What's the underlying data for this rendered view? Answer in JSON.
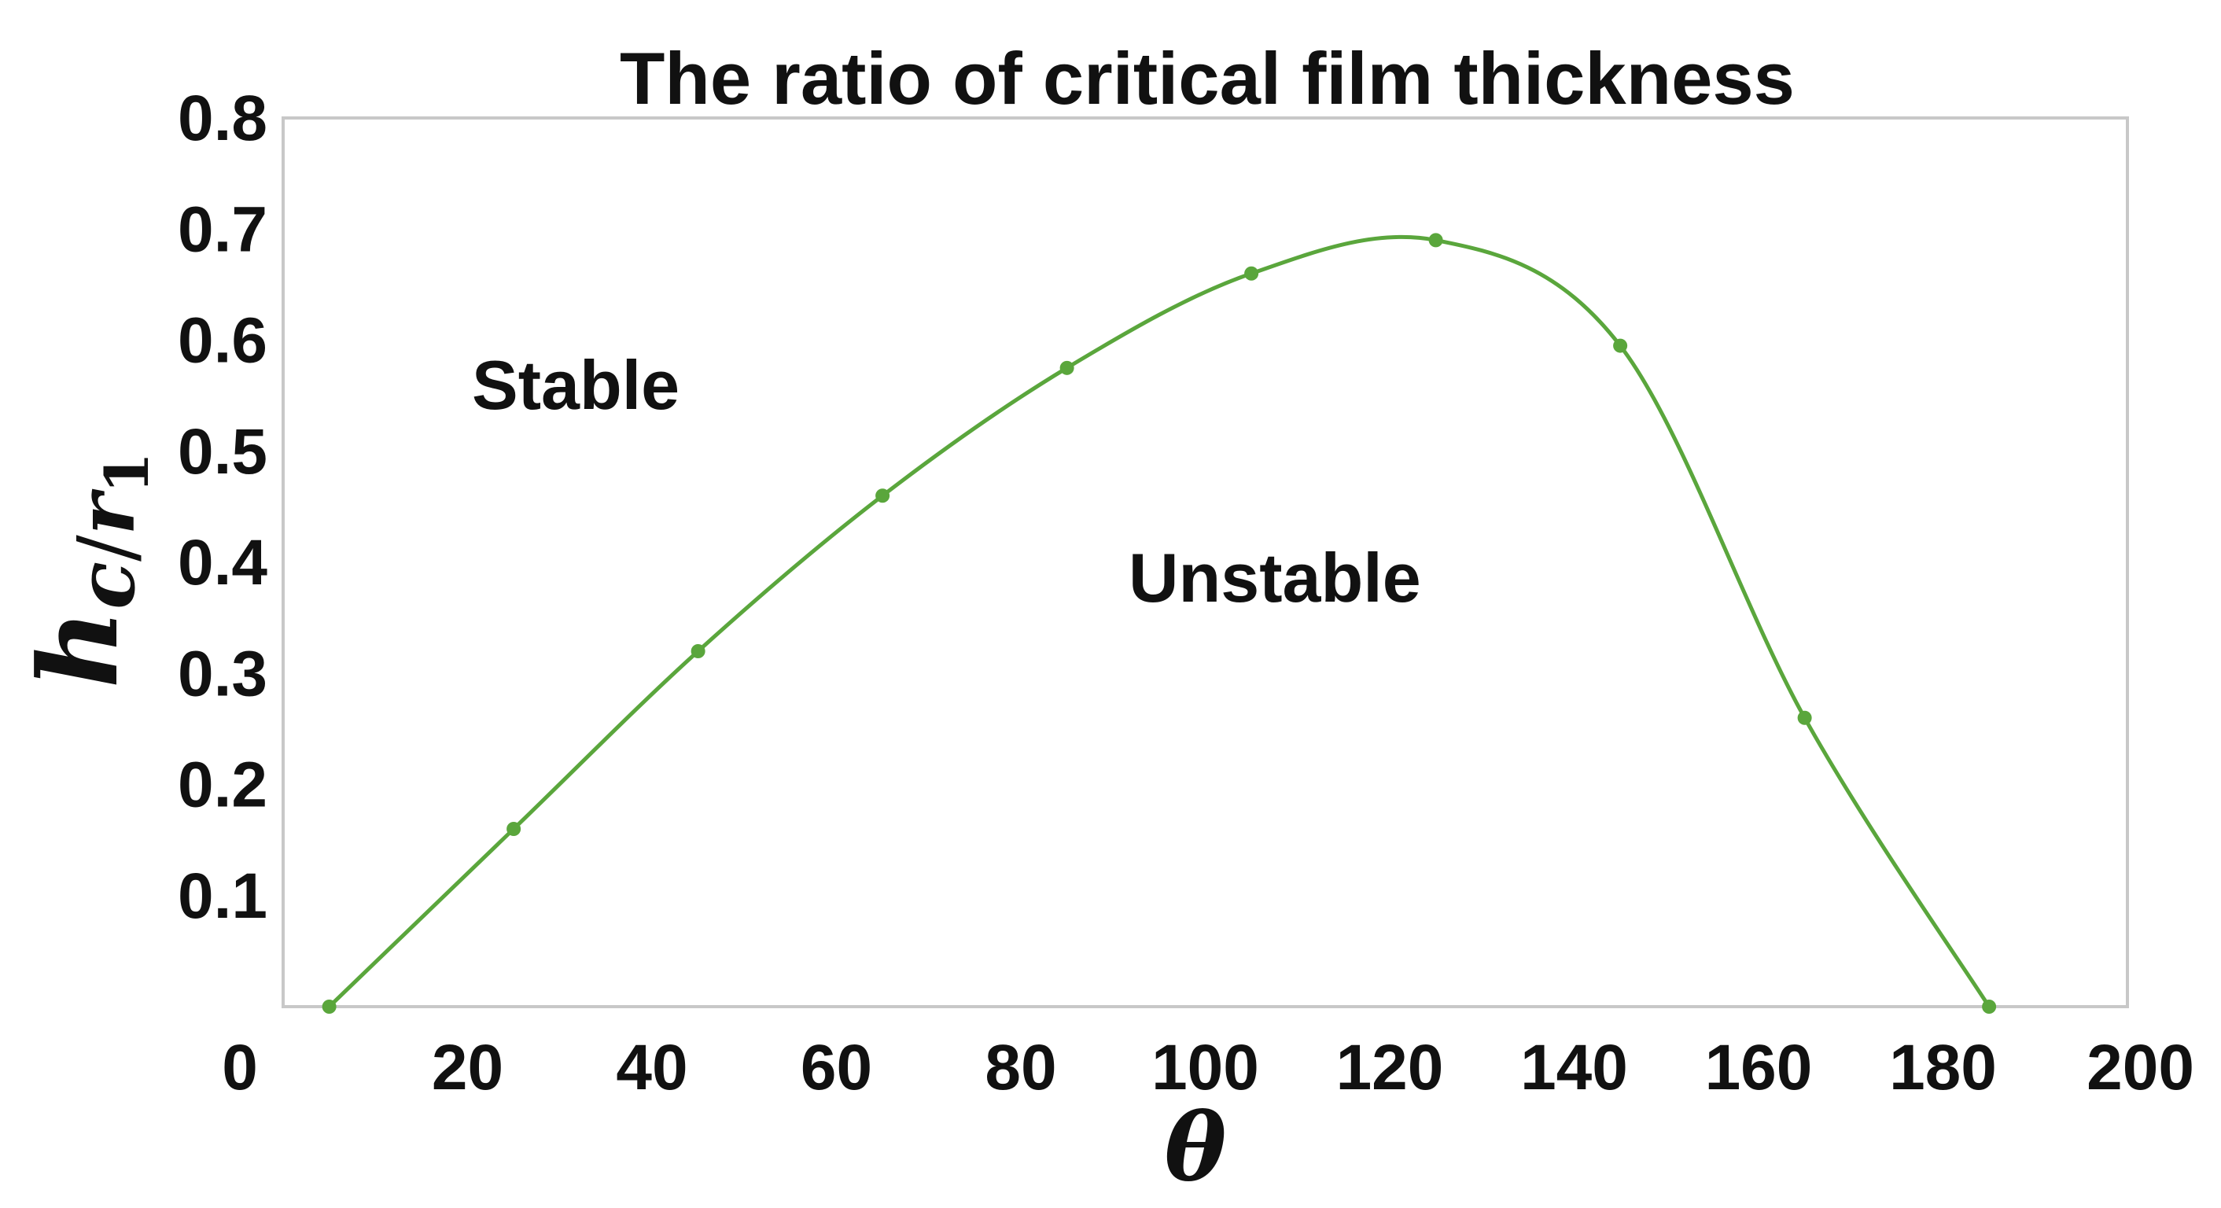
{
  "chart_data": {
    "type": "line",
    "title": "The ratio of critical film thickness",
    "xlabel": "θ",
    "ylabel": {
      "base": "h",
      "sub_num": "c",
      "sub_sep": "/",
      "sub_den": "r",
      "sub_den_index": "1"
    },
    "xlim": [
      0,
      200
    ],
    "ylim": [
      0,
      0.8
    ],
    "xticks": [
      "0",
      "20",
      "40",
      "60",
      "80",
      "100",
      "120",
      "140",
      "160",
      "180",
      "200"
    ],
    "yticks": [
      "0.1",
      "0.2",
      "0.3",
      "0.4",
      "0.5",
      "0.6",
      "0.7",
      "0.8"
    ],
    "grid": false,
    "legend": "none",
    "series_color": "#5aa63c",
    "series": [
      {
        "x": [
          5,
          25,
          45,
          65,
          85,
          105,
          125,
          145,
          165,
          185
        ],
        "y": [
          0.0,
          0.16,
          0.32,
          0.46,
          0.575,
          0.66,
          0.69,
          0.595,
          0.26,
          0.0
        ]
      }
    ],
    "annotations": [
      {
        "text": "Stable",
        "x": 30,
        "y": 0.56
      },
      {
        "text": "Unstable",
        "x": 110,
        "y": 0.38
      }
    ]
  }
}
